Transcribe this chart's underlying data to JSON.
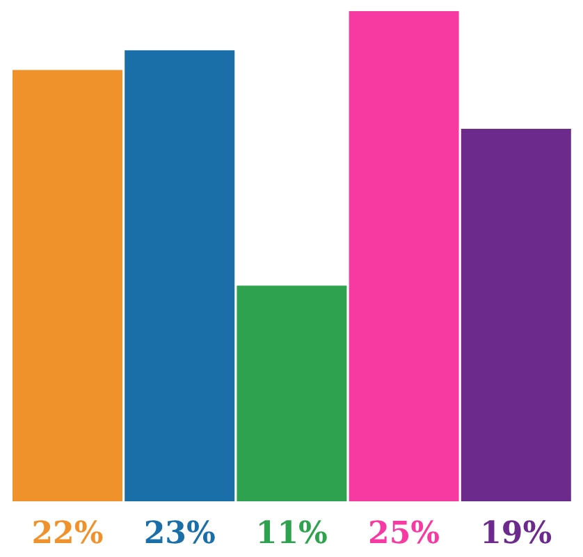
{
  "chart_data": {
    "type": "bar",
    "categories": [
      null,
      null,
      null,
      null,
      null
    ],
    "values": [
      22,
      23,
      11,
      25,
      19
    ],
    "colors": [
      "#f0922b",
      "#1a6fa8",
      "#2ea24f",
      "#f73aa1",
      "#6b2a8c"
    ],
    "value_labels": [
      "22%",
      "23%",
      "11%",
      "25%",
      "19%"
    ]
  }
}
